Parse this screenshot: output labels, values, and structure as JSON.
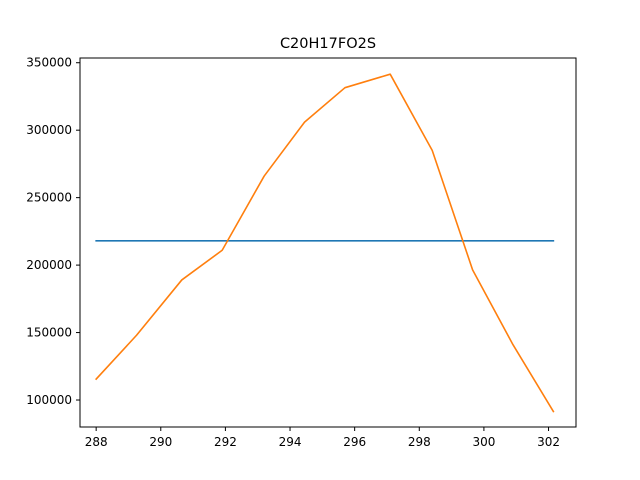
{
  "chart_data": {
    "type": "line",
    "title": "C20H17FO2S",
    "xlabel": "",
    "ylabel": "",
    "xlim": [
      287.5,
      302.85
    ],
    "ylim": [
      80000,
      353500
    ],
    "grid": false,
    "x_ticks": [
      288,
      290,
      292,
      294,
      296,
      298,
      300,
      302
    ],
    "y_ticks": [
      100000,
      150000,
      200000,
      250000,
      300000,
      350000
    ],
    "series": [
      {
        "color": "#1f77b4",
        "x": [
          288.0,
          302.15
        ],
        "y": [
          218000,
          218000
        ]
      },
      {
        "color": "#ff7f0e",
        "x": [
          288.0,
          289.25,
          290.65,
          291.9,
          293.2,
          294.45,
          295.7,
          297.1,
          298.4,
          299.65,
          300.9,
          302.15
        ],
        "y": [
          115500,
          148000,
          189000,
          211000,
          266000,
          306000,
          331500,
          341500,
          285000,
          196500,
          141000,
          91500
        ]
      }
    ]
  }
}
